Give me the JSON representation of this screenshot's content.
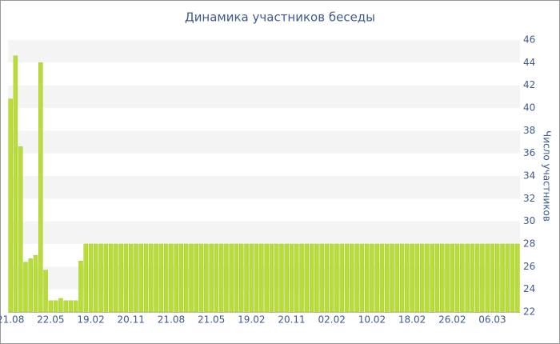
{
  "chart_data": {
    "type": "bar",
    "title": "Динамика участников беседы",
    "y_label": "Число участников",
    "categories": [
      "21.08",
      null,
      null,
      null,
      null,
      null,
      null,
      null,
      "22.05",
      null,
      null,
      null,
      null,
      null,
      null,
      null,
      "19.02",
      null,
      null,
      null,
      null,
      null,
      null,
      null,
      "20.11",
      null,
      null,
      null,
      null,
      null,
      null,
      null,
      "21.08",
      null,
      null,
      null,
      null,
      null,
      null,
      null,
      "21.05",
      null,
      null,
      null,
      null,
      null,
      null,
      null,
      "19.02",
      null,
      null,
      null,
      null,
      null,
      null,
      null,
      "20.11",
      null,
      null,
      null,
      null,
      null,
      null,
      null,
      "02.02",
      null,
      null,
      null,
      null,
      null,
      null,
      null,
      "10.02",
      null,
      null,
      null,
      null,
      null,
      null,
      null,
      "18.02",
      null,
      null,
      null,
      null,
      null,
      null,
      null,
      "26.02",
      null,
      null,
      null,
      null,
      null,
      null,
      null,
      "06.03",
      null,
      null,
      null,
      null,
      null
    ],
    "values": [
      40.8,
      44.6,
      36.6,
      26.4,
      26.7,
      27.0,
      44.0,
      25.7,
      23.0,
      23.0,
      23.2,
      23.0,
      23.0,
      23.0,
      26.5,
      28,
      28,
      28,
      28,
      28,
      28,
      28,
      28,
      28,
      28,
      28,
      28,
      28,
      28,
      28,
      28,
      28,
      28,
      28,
      28,
      28,
      28,
      28,
      28,
      28,
      28,
      28,
      28,
      28,
      28,
      28,
      28,
      28,
      28,
      28,
      28,
      28,
      28,
      28,
      28,
      28,
      28,
      28,
      28,
      28,
      28,
      28,
      28,
      28,
      28,
      28,
      28,
      28,
      28,
      28,
      28,
      28,
      28,
      28,
      28,
      28,
      28,
      28,
      28,
      28,
      28,
      28,
      28,
      28,
      28,
      28,
      28,
      28,
      28,
      28,
      28,
      28,
      28,
      28,
      28,
      28,
      28,
      28,
      28,
      28,
      28,
      28
    ],
    "color": "#b8dc3a",
    "ylim": [
      22,
      46
    ],
    "yticks": [
      22,
      24,
      26,
      28,
      30,
      32,
      34,
      36,
      38,
      40,
      42,
      44,
      46
    ],
    "grid": true
  }
}
